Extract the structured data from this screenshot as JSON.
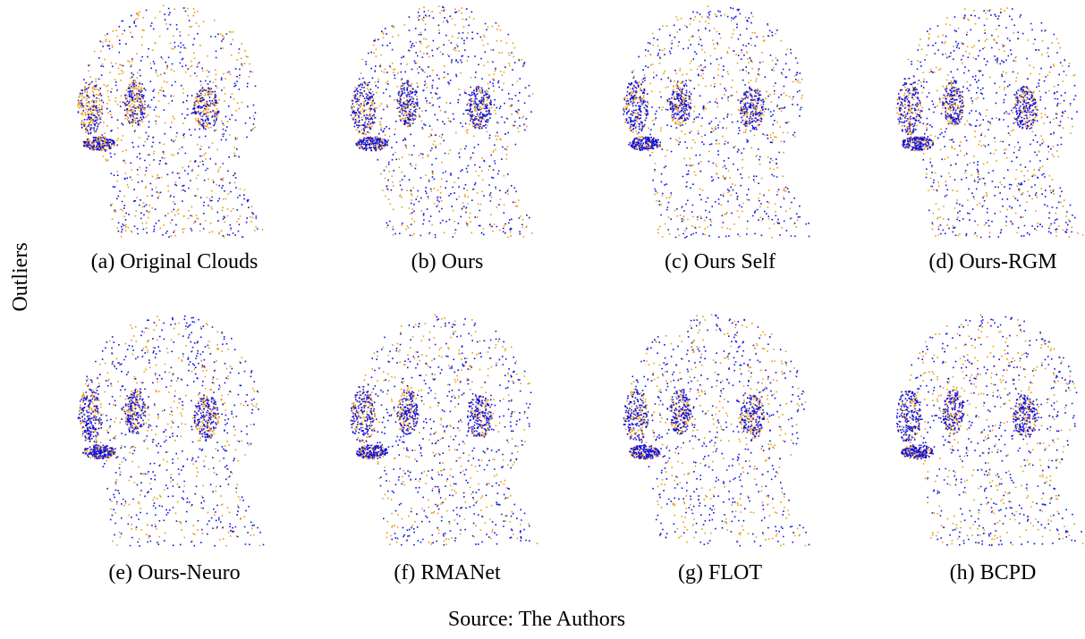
{
  "side_label": "Outliers",
  "panels": [
    {
      "caption": "(a) Original Clouds"
    },
    {
      "caption": "(b) Ours"
    },
    {
      "caption": "(c) Ours Self"
    },
    {
      "caption": "(d) Ours-RGM"
    },
    {
      "caption": "(e) Ours-Neuro"
    },
    {
      "caption": "(f) RMANet"
    },
    {
      "caption": "(g) FLOT"
    },
    {
      "caption": "(h) BCPD"
    }
  ],
  "source": "Source: The Authors"
}
